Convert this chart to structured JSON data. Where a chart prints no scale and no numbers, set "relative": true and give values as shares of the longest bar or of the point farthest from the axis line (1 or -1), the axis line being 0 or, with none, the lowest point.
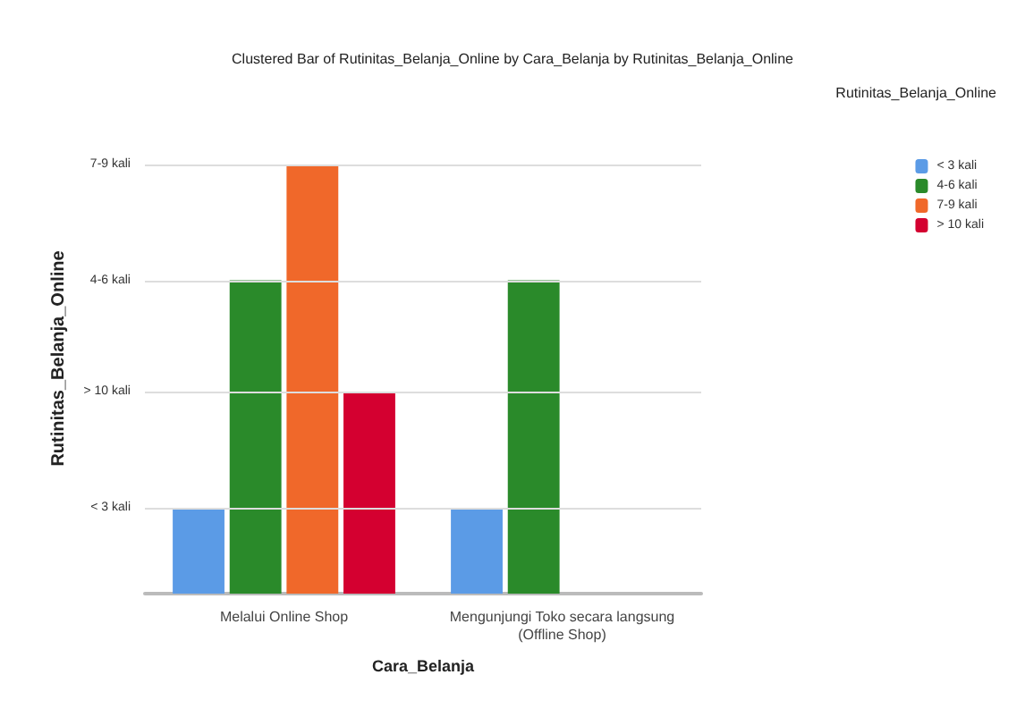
{
  "chart_data": {
    "type": "bar",
    "title": "Clustered Bar of Rutinitas_Belanja_Online by Cara_Belanja by Rutinitas_Belanja_Online",
    "xlabel": "Cara_Belanja",
    "ylabel": "Rutinitas_Belanja_Online",
    "legend_title": "Rutinitas_Belanja_Online",
    "categories": [
      "Melalui Online Shop",
      "Mengunjungi Toko secara langsung\n(Offline Shop)"
    ],
    "relative": true,
    "series": [
      {
        "name": "< 3 kali",
        "color": "#5b9be6",
        "values": [
          0.2,
          0.2
        ]
      },
      {
        "name": "4-6 kali",
        "color": "#2a8a2a",
        "values": [
          0.73,
          0.73
        ]
      },
      {
        "name": "7-9 kali",
        "color": "#f0682a",
        "values": [
          1,
          null
        ]
      },
      {
        "name": "> 10 kali",
        "color": "#d40030",
        "values": [
          0.47,
          null
        ]
      }
    ],
    "ref_lines": [
      {
        "axis": "y",
        "value": 0.2,
        "label": "< 3 kali",
        "color": "#dddddd"
      },
      {
        "axis": "y",
        "value": 0.47,
        "label": "> 10 kali",
        "color": "#dddddd"
      },
      {
        "axis": "y",
        "value": 0.73,
        "label": "4-6 kali",
        "color": "#dddddd"
      },
      {
        "axis": "y",
        "value": 1,
        "label": "7-9 kali",
        "color": "#dddddd"
      }
    ],
    "legend": "top right"
  }
}
